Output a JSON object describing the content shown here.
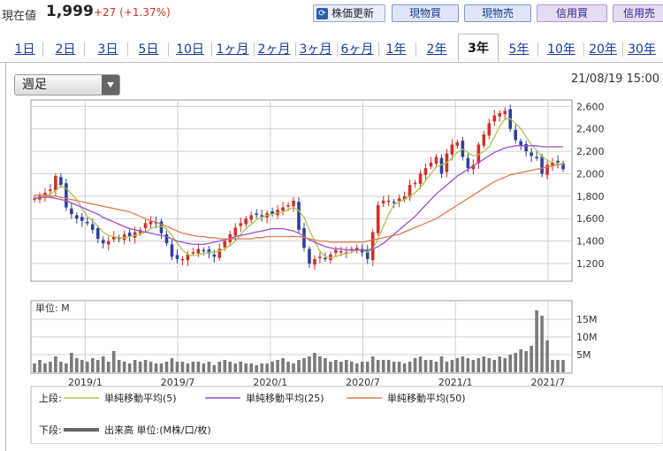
{
  "header": {
    "price_label": "現在値",
    "price": "1,999",
    "change": "+27 (+1.37%)",
    "buttons": [
      "株価更新",
      "現物買",
      "現物売",
      "信用買",
      "信用売"
    ]
  },
  "tabs": [
    "1日",
    "2日",
    "3日",
    "5日",
    "10日",
    "1ヶ月",
    "2ヶ月",
    "3ヶ月",
    "6ヶ月",
    "1年",
    "2年",
    "3年",
    "5年",
    "10年",
    "20年",
    "30年"
  ],
  "active_tab": "3年",
  "period_select": "週足",
  "timestamp": "21/08/19 15:00",
  "volume_unit_label": "単位: M",
  "legend": {
    "upper_label": "上段:",
    "lower_label": "下段:",
    "ma5": "単純移動平均(5)",
    "ma25": "単純移動平均(25)",
    "ma50": "単純移動平均(50)",
    "volume": "出来高 単位:(M株/口/枚)"
  },
  "colors": {
    "up": "#d0302a",
    "down": "#2f3fa0",
    "ma5": "#a8c84a",
    "ma25": "#9a4fd0",
    "ma50": "#e07a4a",
    "volume": "#7a7a7a",
    "tab_link": "#1a3c9a"
  },
  "chart_data": [
    {
      "type": "candlestick",
      "interval": "weekly",
      "x_tick_labels": [
        "2019/1",
        "2019/7",
        "2020/1",
        "2020/7",
        "2021/1",
        "2021/7"
      ],
      "y_tick_labels": [
        "1,200",
        "1,400",
        "1,600",
        "1,800",
        "2,000",
        "2,200",
        "2,400",
        "2,600"
      ],
      "ylim": [
        1050,
        2650
      ],
      "grid": true,
      "approx_close": [
        1780,
        1800,
        1830,
        1860,
        1980,
        1900,
        1700,
        1640,
        1600,
        1580,
        1560,
        1500,
        1420,
        1380,
        1400,
        1440,
        1420,
        1460,
        1440,
        1480,
        1500,
        1560,
        1580,
        1560,
        1470,
        1380,
        1260,
        1240,
        1240,
        1280,
        1300,
        1330,
        1310,
        1290,
        1260,
        1330,
        1400,
        1460,
        1520,
        1560,
        1600,
        1630,
        1640,
        1620,
        1650,
        1640,
        1680,
        1700,
        1720,
        1760,
        1500,
        1340,
        1200,
        1240,
        1260,
        1240,
        1280,
        1320,
        1310,
        1300,
        1330,
        1340,
        1300,
        1240,
        1480,
        1720,
        1760,
        1760,
        1740,
        1780,
        1800,
        1900,
        1920,
        2000,
        2050,
        2100,
        2150,
        2000,
        2180,
        2260,
        2280,
        2150,
        2050,
        2080,
        2260,
        2350,
        2450,
        2520,
        2540,
        2560,
        2400,
        2300,
        2250,
        2200,
        2160,
        2140,
        2000,
        2080,
        2100,
        2100,
        2040
      ],
      "series": [
        {
          "name": "単純移動平均(5)",
          "approx_values": [
            1780,
            1790,
            1800,
            1820,
            1850,
            1890,
            1870,
            1820,
            1770,
            1690,
            1620,
            1580,
            1530,
            1480,
            1450,
            1440,
            1430,
            1430,
            1440,
            1450,
            1460,
            1480,
            1510,
            1530,
            1530,
            1510,
            1450,
            1380,
            1320,
            1280,
            1270,
            1280,
            1290,
            1300,
            1300,
            1310,
            1330,
            1360,
            1400,
            1460,
            1510,
            1550,
            1590,
            1610,
            1630,
            1640,
            1650,
            1660,
            1680,
            1700,
            1670,
            1610,
            1500,
            1400,
            1310,
            1260,
            1250,
            1260,
            1280,
            1290,
            1300,
            1320,
            1320,
            1300,
            1330,
            1420,
            1530,
            1640,
            1720,
            1750,
            1770,
            1800,
            1830,
            1880,
            1940,
            2000,
            2060,
            2080,
            2100,
            2140,
            2190,
            2220,
            2190,
            2160,
            2170,
            2200,
            2240,
            2330,
            2420,
            2490,
            2490,
            2450,
            2400,
            2330,
            2260,
            2210,
            2150,
            2120,
            2100,
            2090,
            2080
          ]
        },
        {
          "name": "単純移動平均(25)",
          "approx_values": [
            1780,
            1790,
            1790,
            1790,
            1780,
            1770,
            1760,
            1740,
            1720,
            1700,
            1680,
            1660,
            1640,
            1610,
            1590,
            1570,
            1550,
            1530,
            1510,
            1500,
            1490,
            1480,
            1470,
            1460,
            1450,
            1440,
            1420,
            1400,
            1390,
            1380,
            1370,
            1370,
            1370,
            1380,
            1390,
            1400,
            1410,
            1420,
            1440,
            1450,
            1460,
            1470,
            1480,
            1490,
            1500,
            1510,
            1510,
            1510,
            1500,
            1490,
            1470,
            1440,
            1410,
            1390,
            1370,
            1350,
            1340,
            1330,
            1330,
            1320,
            1320,
            1320,
            1320,
            1320,
            1330,
            1350,
            1380,
            1420,
            1460,
            1500,
            1540,
            1580,
            1620,
            1670,
            1720,
            1770,
            1820,
            1860,
            1900,
            1940,
            1980,
            2010,
            2040,
            2070,
            2100,
            2130,
            2160,
            2190,
            2210,
            2230,
            2240,
            2250,
            2250,
            2250,
            2250,
            2250,
            2240,
            2240,
            2240,
            2240,
            2240
          ]
        },
        {
          "name": "単純移動平均(50)",
          "approx_values": [
            1810,
            1810,
            1810,
            1800,
            1800,
            1790,
            1780,
            1770,
            1760,
            1750,
            1740,
            1730,
            1720,
            1710,
            1700,
            1690,
            1680,
            1670,
            1660,
            1640,
            1620,
            1600,
            1580,
            1570,
            1550,
            1530,
            1510,
            1490,
            1470,
            1460,
            1450,
            1440,
            1440,
            1430,
            1430,
            1420,
            1420,
            1420,
            1420,
            1420,
            1420,
            1420,
            1430,
            1430,
            1440,
            1440,
            1440,
            1440,
            1440,
            1440,
            1440,
            1430,
            1420,
            1410,
            1400,
            1400,
            1390,
            1390,
            1390,
            1390,
            1390,
            1390,
            1390,
            1400,
            1410,
            1420,
            1430,
            1440,
            1450,
            1460,
            1480,
            1500,
            1520,
            1540,
            1560,
            1580,
            1600,
            1630,
            1660,
            1690,
            1720,
            1750,
            1780,
            1810,
            1840,
            1870,
            1900,
            1930,
            1950,
            1970,
            1990,
            2000,
            2010,
            2020,
            2030,
            2040,
            2050,
            2060,
            2070,
            2080,
            2090
          ]
        }
      ]
    },
    {
      "type": "bar",
      "title": "出来高",
      "unit_label": "単位: M",
      "y_tick_labels": [
        "5M",
        "10M",
        "15M"
      ],
      "ylim": [
        0,
        20
      ],
      "approx_values": [
        2.5,
        3.5,
        2.5,
        3.0,
        4.5,
        3.0,
        2.5,
        5.5,
        4.0,
        3.5,
        3.0,
        4.0,
        3.5,
        4.5,
        3.0,
        6.0,
        3.5,
        3.0,
        2.5,
        3.5,
        3.0,
        3.5,
        3.0,
        2.5,
        2.5,
        3.0,
        4.0,
        3.0,
        3.0,
        2.5,
        3.0,
        3.0,
        2.5,
        3.0,
        2.0,
        3.0,
        3.5,
        3.0,
        2.5,
        3.0,
        2.5,
        2.5,
        2.0,
        2.5,
        2.5,
        3.0,
        3.5,
        4.0,
        3.0,
        2.5,
        3.5,
        4.0,
        4.5,
        5.5,
        4.5,
        4.0,
        3.0,
        3.5,
        3.0,
        3.5,
        3.0,
        2.5,
        3.0,
        3.0,
        4.5,
        3.5,
        3.5,
        3.5,
        3.0,
        3.0,
        2.5,
        3.0,
        4.0,
        4.5,
        3.5,
        3.5,
        3.0,
        4.5,
        3.0,
        3.5,
        4.0,
        4.5,
        4.0,
        3.5,
        4.0,
        4.5,
        4.0,
        3.5,
        4.5,
        4.0,
        5.0,
        5.5,
        6.5,
        6.0,
        7.5,
        17.5,
        16.0,
        9.0,
        3.5,
        3.5,
        3.5
      ]
    }
  ]
}
